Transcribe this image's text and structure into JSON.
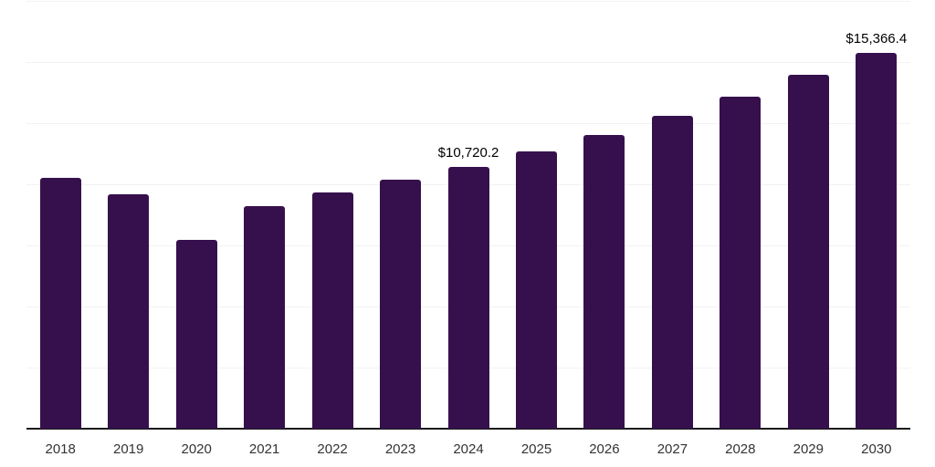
{
  "chart_data": {
    "type": "bar",
    "title": "",
    "xlabel": "",
    "ylabel": "",
    "categories": [
      "2018",
      "2019",
      "2020",
      "2021",
      "2022",
      "2023",
      "2024",
      "2025",
      "2026",
      "2027",
      "2028",
      "2029",
      "2030"
    ],
    "values": [
      10270,
      9600,
      7730,
      9110,
      9670,
      10190,
      10720.2,
      11350,
      12020,
      12800,
      13580,
      14480,
      15366.4
    ],
    "data_labels": {
      "2024": "$10,720.2",
      "2030": "$15,366.4"
    },
    "value_prefix": "$",
    "ylim": [
      0,
      17500
    ],
    "gridline_step": 2500,
    "grid": "horizontal",
    "legend": "none",
    "y_axis_labels_visible": false
  },
  "colors": {
    "bar": "#36104D",
    "gridline": "#F2F2F2",
    "axis_line": "#1A1A1A",
    "data_label": "#000000",
    "tick_label": "#333333",
    "background": "#FFFFFF"
  }
}
